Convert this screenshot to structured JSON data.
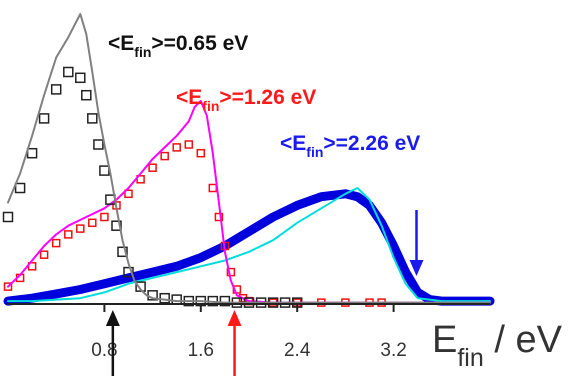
{
  "chart_data": {
    "type": "line",
    "title": "",
    "xlabel": {
      "main": "E",
      "sub": "fin",
      "rest": " / eV"
    },
    "ylabel": "",
    "xlim": [
      0.0,
      4.0
    ],
    "ylim": [
      0.0,
      1.0
    ],
    "x_ticks": [
      0.8,
      1.6,
      2.4,
      3.2
    ],
    "x_tick_labels": [
      "0.8",
      "1.6",
      "2.4",
      "3.2"
    ],
    "grid": false,
    "colors": {
      "gray": "#808080",
      "black": "#222222",
      "magenta": "#ff00ff",
      "red": "#ee1111",
      "blue": "#0000dd",
      "cyan": "#00dddd"
    },
    "series": [
      {
        "color": "gray",
        "style": "line-noisy",
        "x": [
          0.0,
          0.1,
          0.2,
          0.3,
          0.4,
          0.5,
          0.55,
          0.6,
          0.65,
          0.7,
          0.75,
          0.8,
          0.85,
          0.9,
          0.95,
          1.0,
          1.05,
          1.1,
          1.15,
          1.2,
          1.3,
          1.4,
          1.5,
          1.6,
          1.8,
          2.0,
          2.2,
          2.6,
          3.0,
          3.4,
          3.8,
          4.0
        ],
        "y": [
          0.35,
          0.45,
          0.58,
          0.72,
          0.85,
          0.92,
          0.96,
          1.0,
          0.93,
          0.8,
          0.66,
          0.55,
          0.45,
          0.33,
          0.22,
          0.14,
          0.08,
          0.05,
          0.03,
          0.02,
          0.015,
          0.01,
          0.01,
          0.01,
          0.005,
          0.005,
          0.005,
          0.005,
          0.005,
          0.005,
          0.005,
          0.005
        ]
      },
      {
        "color": "black",
        "style": "square-markers",
        "x": [
          0.0,
          0.1,
          0.2,
          0.3,
          0.4,
          0.5,
          0.6,
          0.65,
          0.7,
          0.75,
          0.8,
          0.85,
          0.9,
          0.95,
          1.0,
          1.1,
          1.2,
          1.3,
          1.4,
          1.5,
          1.6,
          1.7,
          1.8,
          1.9,
          2.0,
          2.1,
          2.2,
          2.3,
          2.4
        ],
        "y": [
          0.3,
          0.4,
          0.52,
          0.64,
          0.74,
          0.8,
          0.78,
          0.72,
          0.64,
          0.55,
          0.46,
          0.36,
          0.27,
          0.18,
          0.11,
          0.06,
          0.03,
          0.02,
          0.015,
          0.01,
          0.01,
          0.01,
          0.01,
          0.005,
          0.005,
          0.005,
          0.005,
          0.005,
          0.005
        ]
      },
      {
        "color": "magenta",
        "style": "line-noisy",
        "x": [
          0.0,
          0.1,
          0.2,
          0.3,
          0.4,
          0.5,
          0.6,
          0.7,
          0.8,
          0.9,
          1.0,
          1.1,
          1.2,
          1.3,
          1.4,
          1.5,
          1.55,
          1.6,
          1.65,
          1.7,
          1.75,
          1.8,
          1.85,
          1.9,
          2.0,
          2.2,
          2.6,
          3.0,
          3.4,
          4.0
        ],
        "y": [
          0.06,
          0.1,
          0.15,
          0.2,
          0.24,
          0.27,
          0.29,
          0.31,
          0.33,
          0.36,
          0.4,
          0.45,
          0.5,
          0.54,
          0.58,
          0.63,
          0.68,
          0.7,
          0.65,
          0.52,
          0.35,
          0.18,
          0.08,
          0.03,
          0.01,
          0.005,
          0.005,
          0.005,
          0.005,
          0.005
        ]
      },
      {
        "color": "red",
        "style": "square-markers-dense",
        "x": [
          0.0,
          0.1,
          0.2,
          0.3,
          0.4,
          0.5,
          0.6,
          0.7,
          0.8,
          0.9,
          1.0,
          1.1,
          1.2,
          1.3,
          1.4,
          1.5,
          1.6,
          1.7,
          1.75,
          1.8,
          1.85,
          1.9,
          1.95,
          2.0,
          2.2,
          2.4,
          2.6,
          2.8,
          3.0,
          3.1
        ],
        "y": [
          0.06,
          0.09,
          0.13,
          0.17,
          0.21,
          0.24,
          0.26,
          0.28,
          0.3,
          0.34,
          0.38,
          0.43,
          0.47,
          0.51,
          0.54,
          0.55,
          0.52,
          0.4,
          0.3,
          0.2,
          0.11,
          0.05,
          0.02,
          0.01,
          0.005,
          0.005,
          0.005,
          0.005,
          0.005,
          0.005
        ]
      },
      {
        "color": "blue",
        "style": "thick-line",
        "x": [
          0.0,
          0.2,
          0.4,
          0.6,
          0.8,
          1.0,
          1.2,
          1.4,
          1.6,
          1.8,
          2.0,
          2.2,
          2.4,
          2.6,
          2.8,
          2.9,
          3.0,
          3.1,
          3.2,
          3.3,
          3.4,
          3.5,
          3.6,
          3.8,
          4.0
        ],
        "y": [
          0.01,
          0.02,
          0.035,
          0.05,
          0.07,
          0.09,
          0.11,
          0.13,
          0.16,
          0.2,
          0.25,
          0.3,
          0.34,
          0.37,
          0.38,
          0.37,
          0.34,
          0.28,
          0.2,
          0.11,
          0.04,
          0.015,
          0.01,
          0.01,
          0.01
        ]
      },
      {
        "color": "cyan",
        "style": "line-noisy",
        "x": [
          0.0,
          0.2,
          0.4,
          0.6,
          0.8,
          1.0,
          1.2,
          1.4,
          1.6,
          1.8,
          2.0,
          2.2,
          2.4,
          2.6,
          2.8,
          2.9,
          3.0,
          3.1,
          3.2,
          3.3,
          3.4,
          3.6,
          3.8,
          4.0
        ],
        "y": [
          0.01,
          0.01,
          0.015,
          0.02,
          0.04,
          0.07,
          0.09,
          0.11,
          0.13,
          0.15,
          0.18,
          0.22,
          0.28,
          0.33,
          0.38,
          0.4,
          0.36,
          0.27,
          0.16,
          0.07,
          0.02,
          0.01,
          0.01,
          0.01
        ]
      }
    ],
    "annotations": [
      {
        "pre": "<E",
        "sub": "fin",
        "post": ">=0.65 eV",
        "color": "#111111"
      },
      {
        "pre": "<E",
        "sub": "fin",
        "post": ">=1.26 eV",
        "color": "#ff1a1a"
      },
      {
        "pre": "<E",
        "sub": "fin",
        "post": ">=2.26 eV",
        "color": "#1a1aee"
      }
    ],
    "arrows": [
      {
        "x": 0.87,
        "color": "#111111",
        "direction": "up"
      },
      {
        "x": 1.88,
        "color": "#ff1a1a",
        "direction": "up"
      },
      {
        "x": 3.39,
        "color": "#1a1aee",
        "direction": "down"
      }
    ]
  }
}
